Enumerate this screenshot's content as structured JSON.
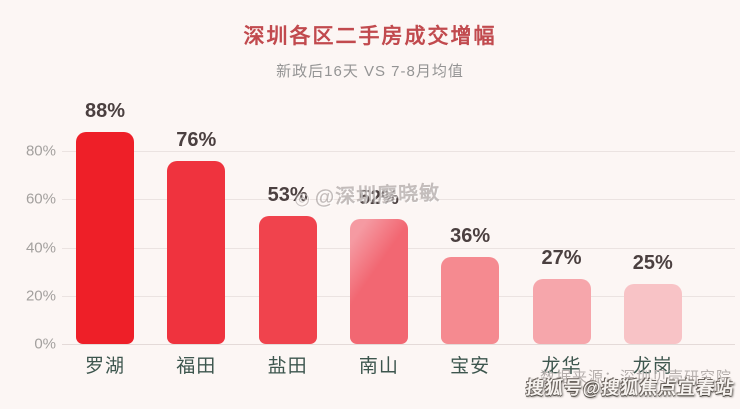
{
  "page": {
    "background": "#fcf6f4"
  },
  "header": {
    "title": "深圳各区二手房成交增幅",
    "subtitle": "新政后16天 VS 7-8月均值"
  },
  "watermarks": {
    "middle_icon": "camera-icon",
    "middle_icon_glyph": "◎",
    "middle": "@深圳廖晓敏",
    "bottom": "搜狐号@搜狐焦点宜春站"
  },
  "footer": {
    "source": "数据来源：深圳贝壳研究院"
  },
  "chart_data": {
    "type": "bar",
    "title": "深圳各区二手房成交增幅",
    "subtitle": "新政后16天 VS 7-8月均值",
    "categories": [
      "罗湖",
      "福田",
      "盐田",
      "南山",
      "宝安",
      "龙华",
      "龙岗"
    ],
    "values": [
      88,
      76,
      53,
      52,
      36,
      27,
      25
    ],
    "value_labels": [
      "88%",
      "76%",
      "53%",
      "52%",
      "36%",
      "27%",
      "25%"
    ],
    "bar_colors": [
      "#ee1f28",
      "#ef333e",
      "#f0434d",
      "#f26772",
      "#f58a90",
      "#f6a6ab",
      "#f8c3c6"
    ],
    "bar_gradient_index": 3,
    "bar_gradient": "linear-gradient(125deg, #f59aa2 0%, #f59aa2 12%, #f26772 42%)",
    "xlabel": "",
    "ylabel": "",
    "ylim": [
      0,
      100
    ],
    "yticks": [
      0,
      20,
      40,
      60,
      80
    ],
    "ytick_labels": [
      "0%",
      "20%",
      "40%",
      "60%",
      "80%"
    ],
    "grid": true,
    "legend": false
  }
}
